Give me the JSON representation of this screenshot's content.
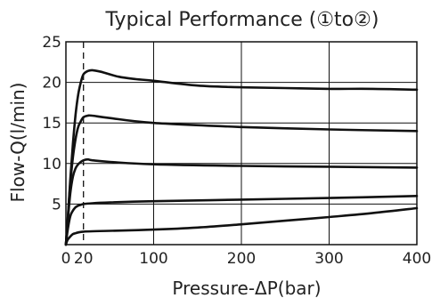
{
  "chart_data": {
    "type": "line",
    "title": "Typical Performance (①to②)",
    "xlabel": "Pressure-ΔP(bar)",
    "ylabel": "Flow-Q(l/min)",
    "xlim": [
      0,
      400
    ],
    "ylim": [
      0,
      25
    ],
    "x_ticks": [
      0,
      20,
      100,
      200,
      300,
      400
    ],
    "x_tick_labels": [
      "0",
      "20",
      "100",
      "200",
      "300",
      "400"
    ],
    "y_ticks": [
      5,
      10,
      15,
      20,
      25
    ],
    "y_tick_labels": [
      "5",
      "10",
      "15",
      "20",
      "25"
    ],
    "grid": true,
    "reference_line_x": 20,
    "series": [
      {
        "x": [
          0,
          2,
          5,
          8,
          11,
          14,
          17,
          20,
          25,
          30,
          40,
          60,
          80,
          100,
          150,
          200,
          250,
          300,
          350,
          400
        ],
        "y": [
          0,
          3.0,
          8.0,
          12.5,
          16.0,
          18.5,
          20.0,
          21.0,
          21.4,
          21.5,
          21.3,
          20.7,
          20.4,
          20.2,
          19.6,
          19.4,
          19.3,
          19.2,
          19.2,
          19.1
        ]
      },
      {
        "x": [
          0,
          2,
          5,
          8,
          11,
          14,
          17,
          20,
          25,
          30,
          50,
          100,
          200,
          300,
          400
        ],
        "y": [
          0,
          3.0,
          7.5,
          10.8,
          13.0,
          14.5,
          15.2,
          15.7,
          15.9,
          15.9,
          15.6,
          15.0,
          14.5,
          14.2,
          14.0
        ]
      },
      {
        "x": [
          0,
          2,
          5,
          8,
          11,
          14,
          17,
          20,
          25,
          30,
          50,
          100,
          200,
          300,
          400
        ],
        "y": [
          0,
          2.8,
          6.3,
          8.4,
          9.4,
          9.9,
          10.2,
          10.4,
          10.5,
          10.4,
          10.2,
          9.9,
          9.7,
          9.6,
          9.5
        ]
      },
      {
        "x": [
          0,
          2,
          5,
          8,
          11,
          14,
          17,
          20,
          30,
          50,
          100,
          200,
          300,
          400
        ],
        "y": [
          0,
          1.8,
          3.5,
          4.2,
          4.6,
          4.8,
          4.9,
          5.0,
          5.1,
          5.2,
          5.35,
          5.55,
          5.75,
          6.0
        ]
      },
      {
        "x": [
          0,
          2,
          5,
          8,
          11,
          14,
          20,
          30,
          50,
          100,
          150,
          200,
          250,
          300,
          350,
          400
        ],
        "y": [
          0,
          0.6,
          1.0,
          1.3,
          1.4,
          1.5,
          1.6,
          1.65,
          1.7,
          1.85,
          2.1,
          2.5,
          2.95,
          3.4,
          3.9,
          4.5
        ]
      }
    ]
  }
}
